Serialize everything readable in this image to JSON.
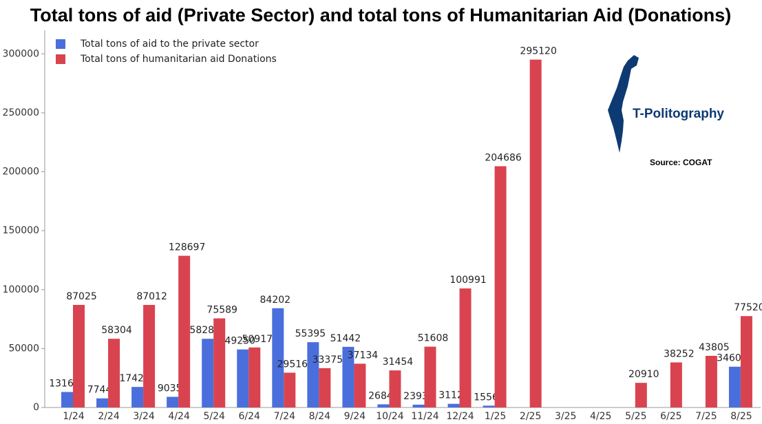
{
  "chart_data": {
    "type": "bar",
    "title": "Total tons of aid (Private Sector) and total tons of Humanitarian Aid (Donations)",
    "categories": [
      "1/24",
      "2/24",
      "3/24",
      "4/24",
      "5/24",
      "6/24",
      "7/24",
      "8/24",
      "9/24",
      "10/24",
      "11/24",
      "12/24",
      "1/25",
      "2/25",
      "3/25",
      "4/25",
      "5/25",
      "6/25",
      "7/25",
      "8/25"
    ],
    "series": [
      {
        "name": "Total tons of aid to the private sector",
        "color": "#4a6fdc",
        "values": [
          13160,
          7744,
          17429,
          9035,
          58280,
          49250,
          84202,
          55395,
          51442,
          2684,
          2393,
          3112,
          1556,
          null,
          null,
          null,
          null,
          null,
          null,
          34606
        ]
      },
      {
        "name": "Total tons of humanitarian aid Donations",
        "color": "#d9434f",
        "values": [
          87025,
          58304,
          87012,
          128697,
          75589,
          50917,
          29516,
          33375,
          37134,
          31454,
          51608,
          100991,
          204686,
          295120,
          null,
          null,
          20910,
          38252,
          43805,
          77520
        ]
      }
    ],
    "ylim": [
      0,
      320000
    ],
    "yticks": [
      0,
      50000,
      100000,
      150000,
      200000,
      250000,
      300000
    ],
    "grid": false,
    "legend": "top-left"
  },
  "logo": {
    "text": "T-Politography"
  },
  "source": "Source: COGAT"
}
